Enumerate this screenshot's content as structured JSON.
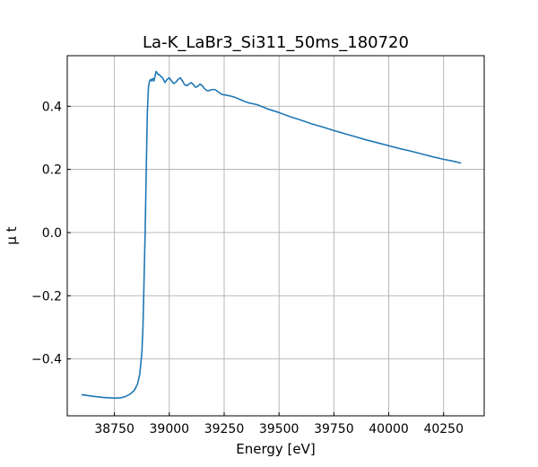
{
  "chart_data": {
    "type": "line",
    "title": "La-K_LaBr3_Si311_50ms_180720",
    "xlabel": "Energy [eV]",
    "ylabel": "μ t",
    "xlim": [
      38535,
      40435
    ],
    "ylim": [
      -0.58,
      0.56
    ],
    "grid": true,
    "xticks": [
      38750,
      39000,
      39250,
      39500,
      39750,
      40000,
      40250
    ],
    "xtick_labels": [
      "38750",
      "39000",
      "39250",
      "39500",
      "39750",
      "40000",
      "40250"
    ],
    "yticks": [
      -0.4,
      -0.2,
      0.0,
      0.2,
      0.4
    ],
    "ytick_labels": [
      "−0.4",
      "−0.2",
      "0.0",
      "0.2",
      "0.4"
    ],
    "line_color": "#1f77b4",
    "series": [
      {
        "x": [
          38600,
          38650,
          38700,
          38750,
          38780,
          38800,
          38820,
          38840,
          38855,
          38865,
          38875,
          38880,
          38885,
          38890,
          38895,
          38900,
          38905,
          38910,
          38915,
          38920,
          38925,
          38930,
          38935,
          38940,
          38945,
          38950,
          38955,
          38960,
          38970,
          38980,
          38990,
          39000,
          39010,
          39020,
          39030,
          39040,
          39050,
          39060,
          39070,
          39080,
          39090,
          39100,
          39110,
          39120,
          39130,
          39140,
          39150,
          39160,
          39170,
          39180,
          39190,
          39200,
          39210,
          39220,
          39230,
          39240,
          39260,
          39280,
          39300,
          39320,
          39340,
          39360,
          39380,
          39400,
          39450,
          39500,
          39550,
          39600,
          39650,
          39700,
          39750,
          39800,
          39850,
          39900,
          39950,
          40000,
          40050,
          40100,
          40150,
          40200,
          40250,
          40300,
          40330
        ],
        "y": [
          -0.513,
          -0.518,
          -0.522,
          -0.524,
          -0.523,
          -0.519,
          -0.512,
          -0.5,
          -0.48,
          -0.45,
          -0.38,
          -0.3,
          -0.15,
          0.0,
          0.2,
          0.38,
          0.46,
          0.48,
          0.485,
          0.48,
          0.488,
          0.48,
          0.495,
          0.51,
          0.505,
          0.5,
          0.5,
          0.495,
          0.49,
          0.475,
          0.485,
          0.49,
          0.48,
          0.472,
          0.476,
          0.485,
          0.49,
          0.48,
          0.468,
          0.465,
          0.47,
          0.475,
          0.468,
          0.46,
          0.463,
          0.47,
          0.465,
          0.456,
          0.45,
          0.449,
          0.452,
          0.453,
          0.452,
          0.447,
          0.442,
          0.437,
          0.435,
          0.432,
          0.428,
          0.422,
          0.416,
          0.411,
          0.408,
          0.405,
          0.391,
          0.38,
          0.367,
          0.356,
          0.344,
          0.334,
          0.323,
          0.313,
          0.303,
          0.293,
          0.284,
          0.275,
          0.266,
          0.258,
          0.249,
          0.24,
          0.232,
          0.225,
          0.22
        ]
      }
    ]
  }
}
